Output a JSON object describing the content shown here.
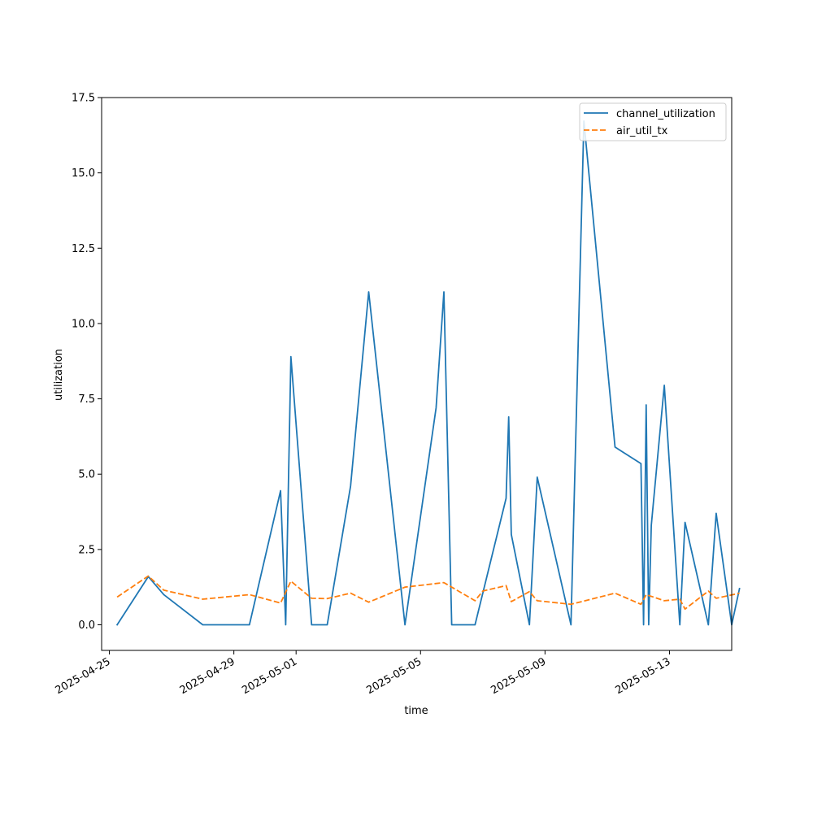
{
  "chart_data": {
    "type": "line",
    "xlabel": "time",
    "ylabel": "utilization",
    "x_scale": "date",
    "xlim": [
      "2025-04-24T18:00",
      "2025-05-15T00:00"
    ],
    "ylim": [
      -0.85,
      17.5
    ],
    "x_ticks": [
      "2025-04-25",
      "2025-04-29",
      "2025-05-01",
      "2025-05-05",
      "2025-05-09",
      "2025-05-13"
    ],
    "y_ticks": [
      0.0,
      2.5,
      5.0,
      7.5,
      10.0,
      12.5,
      15.0,
      17.5
    ],
    "y_tick_labels": [
      "0.0",
      "2.5",
      "5.0",
      "7.5",
      "10.0",
      "12.5",
      "15.0",
      "17.5"
    ],
    "legend_position": "top-right",
    "series": [
      {
        "name": "channel_utilization",
        "color": "#1f77b4",
        "dash": "solid",
        "points": [
          [
            "2025-04-25T06:00",
            0.0
          ],
          [
            "2025-04-26T06:00",
            1.6
          ],
          [
            "2025-04-26T18:00",
            1.0
          ],
          [
            "2025-04-28T00:00",
            0.0
          ],
          [
            "2025-04-29T12:00",
            0.0
          ],
          [
            "2025-04-30T12:00",
            4.45
          ],
          [
            "2025-04-30T16:00",
            0.0
          ],
          [
            "2025-04-30T20:00",
            8.9
          ],
          [
            "2025-05-01T12:00",
            0.0
          ],
          [
            "2025-05-02T00:00",
            0.0
          ],
          [
            "2025-05-02T18:00",
            4.6
          ],
          [
            "2025-05-03T08:00",
            11.05
          ],
          [
            "2025-05-04T12:00",
            0.0
          ],
          [
            "2025-05-05T12:00",
            7.2
          ],
          [
            "2025-05-05T18:00",
            11.05
          ],
          [
            "2025-05-06T00:00",
            0.0
          ],
          [
            "2025-05-06T18:00",
            0.0
          ],
          [
            "2025-05-07T18:00",
            4.2
          ],
          [
            "2025-05-07T20:00",
            6.9
          ],
          [
            "2025-05-07T22:00",
            3.0
          ],
          [
            "2025-05-08T12:00",
            0.0
          ],
          [
            "2025-05-08T18:00",
            4.9
          ],
          [
            "2025-05-09T20:00",
            0.0
          ],
          [
            "2025-05-10T06:00",
            16.72
          ],
          [
            "2025-05-11T06:00",
            5.9
          ],
          [
            "2025-05-12T02:00",
            5.35
          ],
          [
            "2025-05-12T04:00",
            0.0
          ],
          [
            "2025-05-12T06:00",
            7.3
          ],
          [
            "2025-05-12T08:00",
            0.0
          ],
          [
            "2025-05-12T10:00",
            3.3
          ],
          [
            "2025-05-12T20:00",
            7.95
          ],
          [
            "2025-05-13T08:00",
            0.0
          ],
          [
            "2025-05-13T12:00",
            3.4
          ],
          [
            "2025-05-14T06:00",
            0.0
          ],
          [
            "2025-05-14T12:00",
            3.7
          ],
          [
            "2025-05-15T00:00",
            0.0
          ],
          [
            "2025-05-15T06:00",
            1.2
          ]
        ]
      },
      {
        "name": "air_util_tx",
        "color": "#ff7f0e",
        "dash": "dashed",
        "points": [
          [
            "2025-04-25T06:00",
            0.92
          ],
          [
            "2025-04-26T06:00",
            1.62
          ],
          [
            "2025-04-26T18:00",
            1.15
          ],
          [
            "2025-04-28T00:00",
            0.85
          ],
          [
            "2025-04-29T12:00",
            1.0
          ],
          [
            "2025-04-30T12:00",
            0.72
          ],
          [
            "2025-04-30T20:00",
            1.45
          ],
          [
            "2025-05-01T12:00",
            0.88
          ],
          [
            "2025-05-02T00:00",
            0.87
          ],
          [
            "2025-05-02T18:00",
            1.05
          ],
          [
            "2025-05-03T08:00",
            0.75
          ],
          [
            "2025-05-04T12:00",
            1.25
          ],
          [
            "2025-05-05T18:00",
            1.4
          ],
          [
            "2025-05-06T18:00",
            0.8
          ],
          [
            "2025-05-07T00:00",
            1.12
          ],
          [
            "2025-05-07T18:00",
            1.3
          ],
          [
            "2025-05-07T22:00",
            0.77
          ],
          [
            "2025-05-08T12:00",
            1.1
          ],
          [
            "2025-05-08T18:00",
            0.8
          ],
          [
            "2025-05-09T20:00",
            0.68
          ],
          [
            "2025-05-11T06:00",
            1.05
          ],
          [
            "2025-05-12T02:00",
            0.68
          ],
          [
            "2025-05-12T06:00",
            1.0
          ],
          [
            "2025-05-12T20:00",
            0.8
          ],
          [
            "2025-05-13T08:00",
            0.85
          ],
          [
            "2025-05-13T12:00",
            0.52
          ],
          [
            "2025-05-14T06:00",
            1.12
          ],
          [
            "2025-05-14T12:00",
            0.88
          ],
          [
            "2025-05-15T06:00",
            1.05
          ]
        ]
      }
    ]
  }
}
